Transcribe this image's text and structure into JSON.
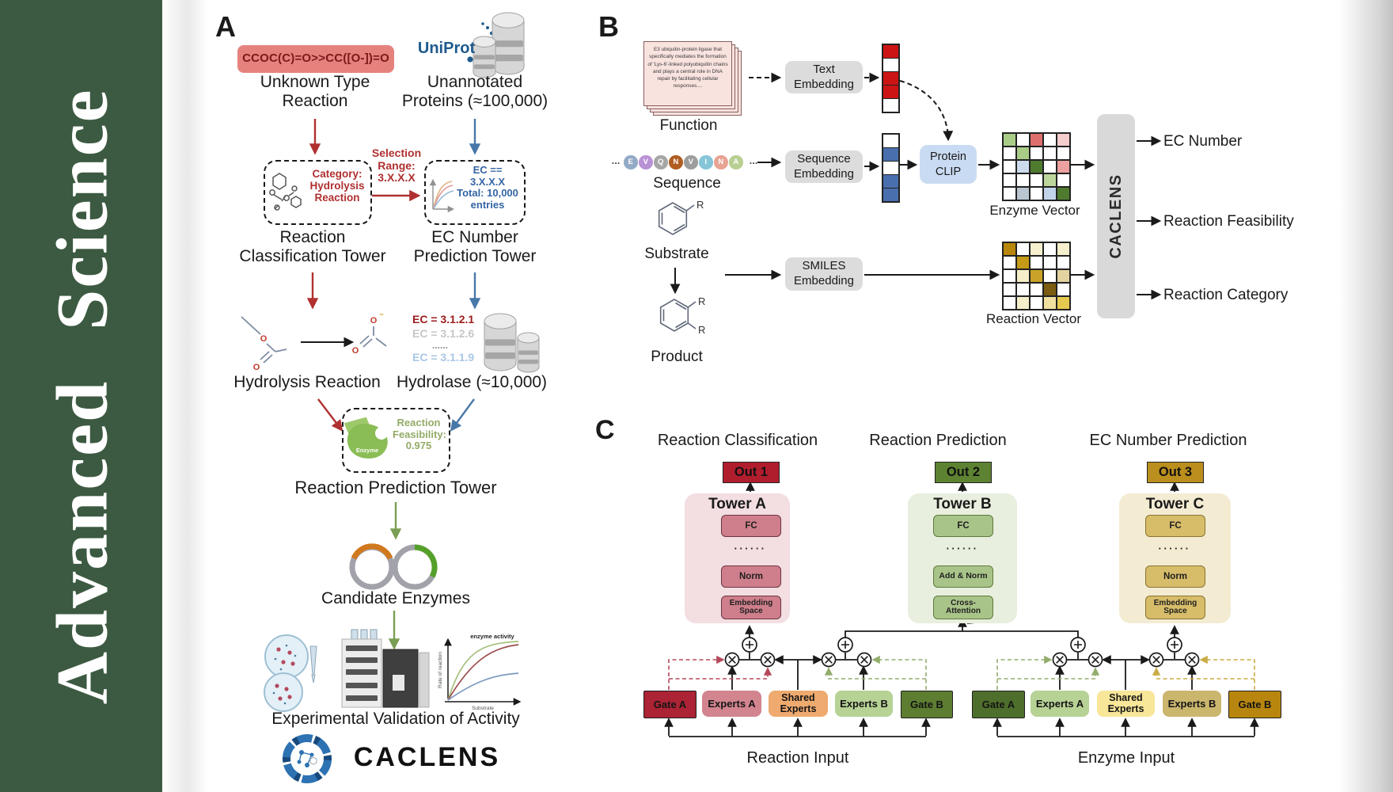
{
  "journal": {
    "title": "Advanced Science"
  },
  "panelA": {
    "label": "A",
    "smiles": "CCOC(C)=O>>CC([O-])=O",
    "unknown_reaction_label": "Unknown Type Reaction",
    "uniprot_logo": "UniProt",
    "unannotated_label": "Unannotated Proteins (≈100,000)",
    "category_box_text": "Category: Hydrolysis Reaction",
    "selection_text": "Selection Range: 3.X.X.X",
    "ec_box_text": "EC == 3.X.X.X Total: 10,000 entries",
    "classification_tower_label": "Reaction Classification Tower",
    "ec_tower_label": "EC Number Prediction Tower",
    "hydrolysis_label": "Hydrolysis Reaction",
    "ec_list": [
      "EC = 3.1.2.1",
      "EC = 3.1.2.6",
      "......",
      "EC = 3.1.1.9"
    ],
    "hydrolase_label": "Hydrolase (≈10,000)",
    "enzyme_icon_label": "Enzyme",
    "feasibility_text": "Reaction Feasibility: 0.975",
    "prediction_tower_label": "Reaction Prediction Tower",
    "candidate_label": "Candidate Enzymes",
    "validation_label": "Experimental Validation of Activity",
    "graph": {
      "annotation": "enzyme activity",
      "ylabel": "Rate of reaction",
      "xlabel": "Substrate"
    },
    "logo_text": "CACLENS"
  },
  "panelB": {
    "label": "B",
    "function_card_text": "E3 ubiquitin-protein ligase that specifically mediates the formation of 'Lys-6'-linked polyubiquitin chains and plays a central role in DNA repair by facilitating cellular responses....",
    "function_label": "Function",
    "ellipsis": "...",
    "sequence_letters": [
      {
        "letter": "E",
        "color": "#92aac6"
      },
      {
        "letter": "V",
        "color": "#b992d6"
      },
      {
        "letter": "Q",
        "color": "#a6a6a6"
      },
      {
        "letter": "N",
        "color": "#b05e22"
      },
      {
        "letter": "V",
        "color": "#9d9d9d"
      },
      {
        "letter": "I",
        "color": "#86c5d8"
      },
      {
        "letter": "N",
        "color": "#e8a393"
      },
      {
        "letter": "A",
        "color": "#b8cf92"
      }
    ],
    "sequence_label": "Sequence",
    "substrate_label": "Substrate",
    "product_label": "Product",
    "r_label": "R",
    "text_embedding": "Text Embedding",
    "sequence_embedding": "Sequence Embedding",
    "smiles_embedding": "SMILES Embedding",
    "protein_clip": "Protein CLIP",
    "enzyme_vector_label": "Enzyme Vector",
    "reaction_vector_label": "Reaction Vector",
    "caclens_label": "CACLENS",
    "outputs": [
      "EC Number",
      "Reaction Feasibility",
      "Reaction Category"
    ],
    "text_vector_cells": [
      "#cc1414",
      "#ffffff",
      "#cc1414",
      "#cc1414",
      "#ffffff"
    ],
    "sequence_vector_cells": [
      "#ffffff",
      "#4a6fae",
      "#ffffff",
      "#4a6fae",
      "#4a6fae"
    ],
    "enzyme_vector_cells": [
      "#a9cc87",
      "#ffffff",
      "#dd6f6f",
      "#ffffff",
      "#f6cdcd",
      "#ffffff",
      "#a9cc87",
      "#ffffff",
      "#ffffff",
      "#ffffff",
      "#ffffff",
      "#ccdcee",
      "#4f7b2f",
      "#ffffff",
      "#eda0a0",
      "#ffffff",
      "#ffffff",
      "#ffffff",
      "#bdd69c",
      "#ffffff",
      "#ffffff",
      "#b9c6d1",
      "#ffffff",
      "#c3d4ea",
      "#4f7b2f"
    ],
    "reaction_vector_cells": [
      "#b8860b",
      "#ffffff",
      "#f7f0cf",
      "#ffffff",
      "#f7eecd",
      "#ffffff",
      "#c49a18",
      "#ffffff",
      "#ffffff",
      "#ffffff",
      "#ffffff",
      "#f5eec8",
      "#c9a227",
      "#ffffff",
      "#e3d3a0",
      "#ffffff",
      "#ffffff",
      "#ffffff",
      "#7b5c10",
      "#ffffff",
      "#ffffff",
      "#f5eecb",
      "#ffffff",
      "#f0e0a0",
      "#e5c94e"
    ]
  },
  "panelC": {
    "label": "C",
    "headers": [
      "Reaction Classification",
      "Reaction Prediction",
      "EC Number Prediction"
    ],
    "outs": [
      "Out 1",
      "Out 2",
      "Out 3"
    ],
    "tower_a": {
      "title": "Tower A",
      "fc": "FC",
      "dots": "······",
      "norm": "Norm",
      "embedding": "Embedding Space"
    },
    "tower_b": {
      "title": "Tower B",
      "fc": "FC",
      "dots": "······",
      "add_norm": "Add & Norm",
      "cross_attention": "Cross-Attention"
    },
    "tower_c": {
      "title": "Tower C",
      "fc": "FC",
      "dots": "······",
      "norm": "Norm",
      "embedding": "Embedding Space"
    },
    "moe_reaction": {
      "gate_a": "Gate A",
      "experts_a": "Experts A",
      "shared": "Shared Experts",
      "experts_b": "Experts B",
      "gate_b": "Gate B",
      "input_label": "Reaction Input"
    },
    "moe_enzyme": {
      "gate_a": "Gate A",
      "experts_a": "Experts A",
      "shared": "Shared Experts",
      "experts_b": "Experts B",
      "gate_b": "Gate B",
      "input_label": "Enzyme Input"
    }
  }
}
